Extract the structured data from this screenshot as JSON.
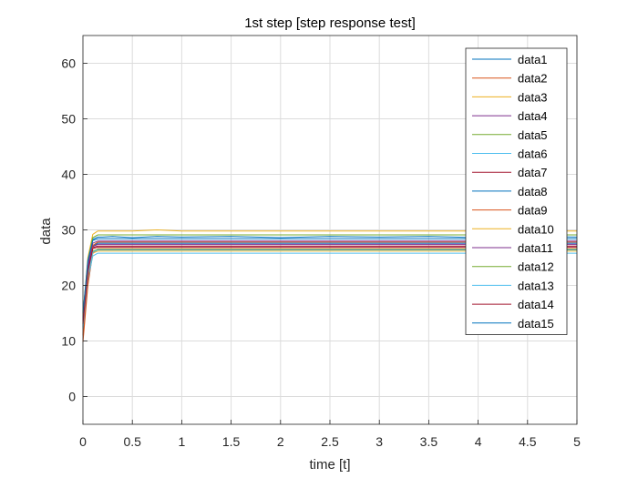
{
  "chart_data": {
    "type": "line",
    "title": "1st step [step response test]",
    "xlabel": "time [t]",
    "ylabel": "data",
    "xlim": [
      0,
      5
    ],
    "ylim": [
      -5,
      65
    ],
    "xticks": [
      "0",
      "0.5",
      "1",
      "1.5",
      "2",
      "2.5",
      "3",
      "3.5",
      "4",
      "4.5",
      "5"
    ],
    "yticks": [
      "0",
      "10",
      "20",
      "30",
      "40",
      "50",
      "60"
    ],
    "grid": true,
    "legend_position": "top-right",
    "x": [
      0,
      0.05,
      0.1,
      0.15,
      0.2,
      0.3,
      0.5,
      0.75,
      1,
      1.5,
      2,
      2.5,
      3,
      3.5,
      4,
      4.5,
      5
    ],
    "series": [
      {
        "name": "data1",
        "color": "#0072BD",
        "values": [
          12.5,
          22,
          27.0,
          27.6,
          27.6,
          27.6,
          27.6,
          27.6,
          27.6,
          27.6,
          27.6,
          27.6,
          27.6,
          27.6,
          27.6,
          27.6,
          27.6
        ]
      },
      {
        "name": "data2",
        "color": "#D95319",
        "values": [
          9.8,
          20,
          25.8,
          26.6,
          26.6,
          26.6,
          26.6,
          26.6,
          26.6,
          26.6,
          26.6,
          26.6,
          26.6,
          26.6,
          26.6,
          26.6,
          26.6
        ]
      },
      {
        "name": "data3",
        "color": "#EDB120",
        "values": [
          14.5,
          25,
          29.2,
          29.8,
          29.8,
          29.8,
          29.8,
          30.0,
          29.8,
          29.8,
          29.8,
          29.8,
          29.8,
          29.8,
          29.8,
          29.8,
          29.8
        ]
      },
      {
        "name": "data4",
        "color": "#7E2F8E",
        "values": [
          13.5,
          23,
          27.0,
          27.4,
          27.4,
          27.4,
          27.4,
          27.4,
          27.4,
          27.4,
          27.4,
          27.4,
          27.4,
          27.4,
          27.4,
          27.4,
          27.4
        ]
      },
      {
        "name": "data5",
        "color": "#77AC30",
        "values": [
          13.0,
          22,
          26.2,
          26.5,
          26.5,
          26.5,
          26.5,
          26.5,
          26.5,
          26.5,
          26.5,
          26.5,
          26.5,
          26.5,
          26.5,
          26.5,
          26.5
        ]
      },
      {
        "name": "data6",
        "color": "#4DBEEE",
        "values": [
          14.0,
          21,
          25.3,
          25.8,
          25.8,
          25.8,
          25.8,
          25.8,
          25.8,
          25.8,
          25.8,
          25.8,
          25.8,
          25.8,
          25.8,
          25.8,
          25.8
        ]
      },
      {
        "name": "data7",
        "color": "#A2142F",
        "values": [
          13.8,
          22.5,
          26.8,
          27.1,
          27.1,
          27.1,
          27.1,
          27.1,
          27.1,
          27.1,
          27.1,
          27.1,
          27.1,
          27.1,
          27.1,
          27.1,
          27.1
        ]
      },
      {
        "name": "data8",
        "color": "#0072BD",
        "values": [
          14.2,
          24,
          28.3,
          28.7,
          28.7,
          28.8,
          28.6,
          28.8,
          28.7,
          28.8,
          28.6,
          28.8,
          28.7,
          28.8,
          28.6,
          28.8,
          28.7
        ]
      },
      {
        "name": "data9",
        "color": "#D95319",
        "values": [
          11.0,
          21,
          27.2,
          27.8,
          27.8,
          27.8,
          27.8,
          27.8,
          27.8,
          27.8,
          27.8,
          27.8,
          27.8,
          27.8,
          27.8,
          27.8,
          27.8
        ]
      },
      {
        "name": "data10",
        "color": "#EDB120",
        "values": [
          13.2,
          22,
          25.8,
          26.2,
          26.2,
          26.2,
          26.2,
          26.2,
          26.2,
          26.2,
          26.2,
          26.2,
          26.2,
          26.2,
          26.2,
          26.2,
          26.2
        ]
      },
      {
        "name": "data11",
        "color": "#7E2F8E",
        "values": [
          13.6,
          23.5,
          27.6,
          28.0,
          28.0,
          28.0,
          28.0,
          28.0,
          28.0,
          28.0,
          28.0,
          28.0,
          28.0,
          28.0,
          28.0,
          28.0,
          28.0
        ]
      },
      {
        "name": "data12",
        "color": "#77AC30",
        "values": [
          14.8,
          24.5,
          28.6,
          29.1,
          29.1,
          29.1,
          29.1,
          29.1,
          29.1,
          29.1,
          29.1,
          29.1,
          29.1,
          29.1,
          29.1,
          29.1,
          29.1
        ]
      },
      {
        "name": "data13",
        "color": "#4DBEEE",
        "values": [
          12.2,
          22,
          26.0,
          26.4,
          26.4,
          26.4,
          26.4,
          26.4,
          26.4,
          26.4,
          26.4,
          26.4,
          26.4,
          26.4,
          26.4,
          26.4,
          26.4
        ]
      },
      {
        "name": "data14",
        "color": "#A2142F",
        "values": [
          13.0,
          22.5,
          26.6,
          26.9,
          26.9,
          26.9,
          26.9,
          26.9,
          26.9,
          26.9,
          26.9,
          26.9,
          26.9,
          26.9,
          26.9,
          26.9,
          26.9
        ]
      },
      {
        "name": "data15",
        "color": "#0072BD",
        "values": [
          15.0,
          24.5,
          28.1,
          28.4,
          28.4,
          28.4,
          28.4,
          28.4,
          28.4,
          28.4,
          28.4,
          28.4,
          28.4,
          28.4,
          28.4,
          28.4,
          28.4
        ]
      }
    ]
  }
}
